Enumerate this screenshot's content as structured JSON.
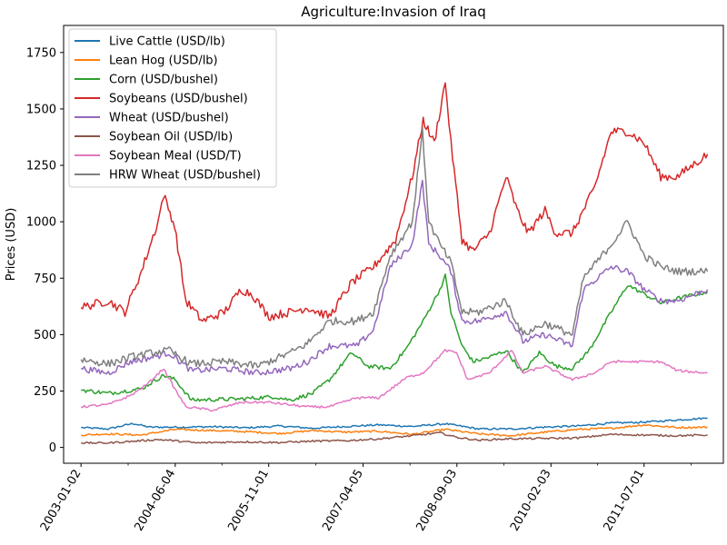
{
  "chart_data": {
    "type": "line",
    "title": "Agriculture:Invasion of Iraq",
    "xlabel": "",
    "ylabel": "Prices (USD)",
    "ylim": [
      -70,
      1870
    ],
    "xlim": [
      "2002-09-28",
      "2012-09-10"
    ],
    "yticks": [
      0,
      250,
      500,
      750,
      1000,
      1250,
      1500,
      1750
    ],
    "xticks": [
      "2003-01-02",
      "2004-06-04",
      "2005-11-01",
      "2007-04-05",
      "2008-09-03",
      "2010-02-03",
      "2011-07-01"
    ],
    "legend_position": "upper-left",
    "grid": false,
    "series": [
      {
        "name": "Live Cattle (USD/lb)",
        "color": "#1f77b4",
        "points": [
          [
            "2003-01-02",
            88
          ],
          [
            "2003-06-01",
            82
          ],
          [
            "2003-10-15",
            106
          ],
          [
            "2004-01-15",
            90
          ],
          [
            "2004-07-01",
            90
          ],
          [
            "2005-01-01",
            92
          ],
          [
            "2005-07-01",
            87
          ],
          [
            "2006-01-01",
            95
          ],
          [
            "2006-07-01",
            85
          ],
          [
            "2007-01-01",
            93
          ],
          [
            "2007-07-01",
            100
          ],
          [
            "2008-01-01",
            93
          ],
          [
            "2008-07-01",
            105
          ],
          [
            "2009-01-01",
            82
          ],
          [
            "2009-07-01",
            82
          ],
          [
            "2010-01-01",
            90
          ],
          [
            "2010-07-01",
            95
          ],
          [
            "2011-01-01",
            108
          ],
          [
            "2011-07-01",
            112
          ],
          [
            "2012-01-01",
            122
          ],
          [
            "2012-06-15",
            130
          ]
        ]
      },
      {
        "name": "Lean Hog (USD/lb)",
        "color": "#ff7f0e",
        "points": [
          [
            "2003-01-02",
            55
          ],
          [
            "2003-06-01",
            60
          ],
          [
            "2003-12-01",
            55
          ],
          [
            "2004-06-01",
            80
          ],
          [
            "2005-01-01",
            75
          ],
          [
            "2005-07-01",
            70
          ],
          [
            "2006-01-01",
            62
          ],
          [
            "2006-07-01",
            75
          ],
          [
            "2007-01-01",
            68
          ],
          [
            "2007-07-01",
            72
          ],
          [
            "2008-01-01",
            58
          ],
          [
            "2008-07-01",
            80
          ],
          [
            "2009-01-01",
            60
          ],
          [
            "2009-07-01",
            52
          ],
          [
            "2010-01-01",
            68
          ],
          [
            "2010-07-01",
            80
          ],
          [
            "2011-01-01",
            85
          ],
          [
            "2011-07-01",
            100
          ],
          [
            "2012-01-01",
            88
          ],
          [
            "2012-06-15",
            90
          ]
        ]
      },
      {
        "name": "Corn (USD/bushel)",
        "color": "#2ca02c",
        "points": [
          [
            "2003-01-02",
            255
          ],
          [
            "2003-06-01",
            240
          ],
          [
            "2003-12-01",
            260
          ],
          [
            "2004-04-01",
            320
          ],
          [
            "2004-06-04",
            300
          ],
          [
            "2004-09-01",
            210
          ],
          [
            "2005-06-01",
            215
          ],
          [
            "2005-12-01",
            225
          ],
          [
            "2006-03-01",
            210
          ],
          [
            "2006-07-01",
            240
          ],
          [
            "2006-10-01",
            300
          ],
          [
            "2007-02-01",
            420
          ],
          [
            "2007-05-01",
            360
          ],
          [
            "2007-09-01",
            350
          ],
          [
            "2007-12-01",
            440
          ],
          [
            "2008-03-01",
            560
          ],
          [
            "2008-06-01",
            700
          ],
          [
            "2008-07-01",
            760
          ],
          [
            "2008-08-01",
            600
          ],
          [
            "2008-10-01",
            450
          ],
          [
            "2008-12-01",
            380
          ],
          [
            "2009-03-01",
            400
          ],
          [
            "2009-06-01",
            430
          ],
          [
            "2009-09-01",
            330
          ],
          [
            "2009-12-01",
            420
          ],
          [
            "2010-03-01",
            360
          ],
          [
            "2010-06-01",
            350
          ],
          [
            "2010-09-01",
            430
          ],
          [
            "2011-01-01",
            600
          ],
          [
            "2011-04-01",
            720
          ],
          [
            "2011-07-01",
            680
          ],
          [
            "2011-10-01",
            640
          ],
          [
            "2012-01-01",
            660
          ],
          [
            "2012-06-15",
            690
          ]
        ]
      },
      {
        "name": "Soybeans (USD/bushel)",
        "color": "#d62728",
        "points": [
          [
            "2003-01-02",
            620
          ],
          [
            "2003-06-01",
            650
          ],
          [
            "2003-09-01",
            600
          ],
          [
            "2003-12-01",
            780
          ],
          [
            "2004-03-01",
            1000
          ],
          [
            "2004-04-01",
            1120
          ],
          [
            "2004-06-01",
            980
          ],
          [
            "2004-08-01",
            650
          ],
          [
            "2004-11-01",
            560
          ],
          [
            "2005-03-01",
            600
          ],
          [
            "2005-06-01",
            700
          ],
          [
            "2005-08-01",
            680
          ],
          [
            "2005-11-01",
            580
          ],
          [
            "2006-03-01",
            600
          ],
          [
            "2006-06-01",
            620
          ],
          [
            "2006-10-01",
            580
          ],
          [
            "2007-02-01",
            730
          ],
          [
            "2007-06-01",
            800
          ],
          [
            "2007-10-01",
            920
          ],
          [
            "2008-01-01",
            1200
          ],
          [
            "2008-03-01",
            1450
          ],
          [
            "2008-05-01",
            1350
          ],
          [
            "2008-07-01",
            1620
          ],
          [
            "2008-08-01",
            1350
          ],
          [
            "2008-10-01",
            920
          ],
          [
            "2008-12-01",
            870
          ],
          [
            "2009-03-01",
            950
          ],
          [
            "2009-06-01",
            1200
          ],
          [
            "2009-08-01",
            1050
          ],
          [
            "2009-10-01",
            950
          ],
          [
            "2010-01-01",
            1050
          ],
          [
            "2010-03-01",
            950
          ],
          [
            "2010-06-01",
            950
          ],
          [
            "2010-10-01",
            1150
          ],
          [
            "2011-01-01",
            1400
          ],
          [
            "2011-04-01",
            1400
          ],
          [
            "2011-07-01",
            1350
          ],
          [
            "2011-10-01",
            1200
          ],
          [
            "2012-01-01",
            1200
          ],
          [
            "2012-06-15",
            1300
          ]
        ]
      },
      {
        "name": "Wheat (USD/bushel)",
        "color": "#9467bd",
        "points": [
          [
            "2003-01-02",
            350
          ],
          [
            "2003-06-01",
            330
          ],
          [
            "2003-10-01",
            380
          ],
          [
            "2004-02-01",
            400
          ],
          [
            "2004-05-01",
            420
          ],
          [
            "2004-09-01",
            340
          ],
          [
            "2005-03-01",
            350
          ],
          [
            "2005-09-01",
            330
          ],
          [
            "2006-03-01",
            350
          ],
          [
            "2006-06-01",
            380
          ],
          [
            "2006-10-01",
            450
          ],
          [
            "2007-03-01",
            450
          ],
          [
            "2007-06-01",
            520
          ],
          [
            "2007-09-01",
            800
          ],
          [
            "2008-01-01",
            900
          ],
          [
            "2008-02-26",
            1180
          ],
          [
            "2008-04-01",
            900
          ],
          [
            "2008-06-01",
            850
          ],
          [
            "2008-08-01",
            780
          ],
          [
            "2008-10-01",
            560
          ],
          [
            "2009-01-01",
            560
          ],
          [
            "2009-06-01",
            600
          ],
          [
            "2009-09-01",
            470
          ],
          [
            "2010-01-01",
            500
          ],
          [
            "2010-06-01",
            450
          ],
          [
            "2010-08-01",
            700
          ],
          [
            "2011-01-01",
            800
          ],
          [
            "2011-04-01",
            780
          ],
          [
            "2011-07-01",
            700
          ],
          [
            "2011-10-01",
            650
          ],
          [
            "2012-01-01",
            650
          ],
          [
            "2012-06-15",
            700
          ]
        ]
      },
      {
        "name": "Soybean Oil (USD/lb)",
        "color": "#8c564b",
        "points": [
          [
            "2003-01-02",
            20
          ],
          [
            "2003-06-01",
            20
          ],
          [
            "2004-03-01",
            35
          ],
          [
            "2004-06-01",
            30
          ],
          [
            "2004-10-01",
            20
          ],
          [
            "2005-06-01",
            25
          ],
          [
            "2006-01-01",
            22
          ],
          [
            "2006-07-01",
            28
          ],
          [
            "2007-01-01",
            30
          ],
          [
            "2007-07-01",
            38
          ],
          [
            "2008-01-01",
            52
          ],
          [
            "2008-06-01",
            65
          ],
          [
            "2008-09-01",
            45
          ],
          [
            "2009-01-01",
            32
          ],
          [
            "2009-06-01",
            38
          ],
          [
            "2010-01-01",
            40
          ],
          [
            "2010-07-01",
            42
          ],
          [
            "2011-01-01",
            58
          ],
          [
            "2011-07-01",
            55
          ],
          [
            "2012-01-01",
            52
          ],
          [
            "2012-06-15",
            55
          ]
        ]
      },
      {
        "name": "Soybean Meal (USD/T)",
        "color": "#e377c2",
        "points": [
          [
            "2003-01-02",
            180
          ],
          [
            "2003-06-01",
            190
          ],
          [
            "2003-10-01",
            230
          ],
          [
            "2004-01-01",
            280
          ],
          [
            "2004-04-01",
            350
          ],
          [
            "2004-06-01",
            260
          ],
          [
            "2004-08-01",
            180
          ],
          [
            "2005-01-01",
            165
          ],
          [
            "2005-06-01",
            200
          ],
          [
            "2005-11-01",
            200
          ],
          [
            "2006-06-01",
            180
          ],
          [
            "2006-10-01",
            180
          ],
          [
            "2007-03-01",
            220
          ],
          [
            "2007-07-01",
            220
          ],
          [
            "2007-12-01",
            310
          ],
          [
            "2008-03-01",
            330
          ],
          [
            "2008-07-01",
            430
          ],
          [
            "2008-09-01",
            420
          ],
          [
            "2008-11-01",
            300
          ],
          [
            "2009-03-01",
            330
          ],
          [
            "2009-05-01",
            380
          ],
          [
            "2009-07-01",
            430
          ],
          [
            "2009-09-01",
            330
          ],
          [
            "2010-01-01",
            360
          ],
          [
            "2010-06-01",
            300
          ],
          [
            "2010-10-01",
            330
          ],
          [
            "2011-01-01",
            380
          ],
          [
            "2011-07-01",
            380
          ],
          [
            "2011-10-01",
            380
          ],
          [
            "2012-01-01",
            340
          ],
          [
            "2012-06-15",
            330
          ]
        ]
      },
      {
        "name": "HRW Wheat (USD/bushel)",
        "color": "#7f7f7f",
        "points": [
          [
            "2003-01-02",
            390
          ],
          [
            "2003-06-01",
            370
          ],
          [
            "2003-10-01",
            400
          ],
          [
            "2004-02-01",
            420
          ],
          [
            "2004-05-01",
            430
          ],
          [
            "2004-09-01",
            370
          ],
          [
            "2005-03-01",
            380
          ],
          [
            "2005-09-01",
            360
          ],
          [
            "2006-03-01",
            420
          ],
          [
            "2006-06-01",
            460
          ],
          [
            "2006-10-01",
            560
          ],
          [
            "2007-03-01",
            560
          ],
          [
            "2007-06-01",
            600
          ],
          [
            "2007-09-01",
            850
          ],
          [
            "2008-01-01",
            1000
          ],
          [
            "2008-02-26",
            1400
          ],
          [
            "2008-04-01",
            1000
          ],
          [
            "2008-06-01",
            900
          ],
          [
            "2008-08-01",
            820
          ],
          [
            "2008-10-01",
            600
          ],
          [
            "2009-01-01",
            600
          ],
          [
            "2009-06-01",
            650
          ],
          [
            "2009-09-01",
            500
          ],
          [
            "2010-01-01",
            550
          ],
          [
            "2010-06-01",
            500
          ],
          [
            "2010-08-01",
            750
          ],
          [
            "2011-01-01",
            900
          ],
          [
            "2011-04-01",
            1000
          ],
          [
            "2011-07-01",
            850
          ],
          [
            "2011-10-01",
            800
          ],
          [
            "2012-01-01",
            780
          ],
          [
            "2012-06-15",
            780
          ]
        ]
      }
    ]
  }
}
